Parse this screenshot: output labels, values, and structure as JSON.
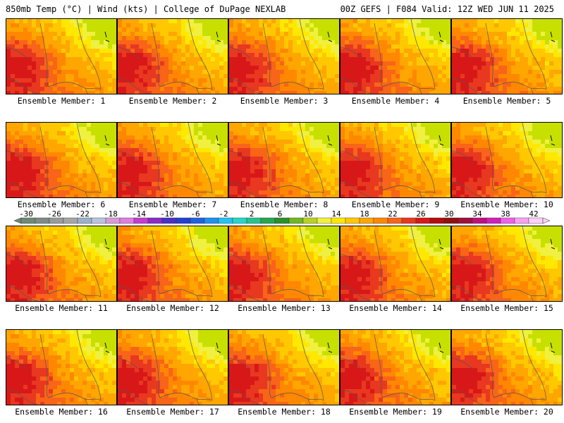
{
  "header": {
    "title_left": "850mb Temp (°C) | Wind (kts) | College of DuPage NEXLAB",
    "title_right": "00Z GEFS | F084 Valid: 12Z WED JUN 11 2025"
  },
  "members": [
    {
      "label": "Ensemble Member: 1"
    },
    {
      "label": "Ensemble Member: 2"
    },
    {
      "label": "Ensemble Member: 3"
    },
    {
      "label": "Ensemble Member: 4"
    },
    {
      "label": "Ensemble Member: 5"
    },
    {
      "label": "Ensemble Member: 6"
    },
    {
      "label": "Ensemble Member: 7"
    },
    {
      "label": "Ensemble Member: 8"
    },
    {
      "label": "Ensemble Member: 9"
    },
    {
      "label": "Ensemble Member: 10"
    },
    {
      "label": "Ensemble Member: 11"
    },
    {
      "label": "Ensemble Member: 12"
    },
    {
      "label": "Ensemble Member: 13"
    },
    {
      "label": "Ensemble Member: 14"
    },
    {
      "label": "Ensemble Member: 15"
    },
    {
      "label": "Ensemble Member: 16"
    },
    {
      "label": "Ensemble Member: 17"
    },
    {
      "label": "Ensemble Member: 18"
    },
    {
      "label": "Ensemble Member: 19"
    },
    {
      "label": "Ensemble Member: 20"
    }
  ],
  "colorbar": {
    "tick_labels": [
      "-30",
      "-26",
      "-22",
      "-18",
      "-14",
      "-10",
      "-6",
      "-2",
      "2",
      "6",
      "10",
      "14",
      "18",
      "22",
      "26",
      "30",
      "34",
      "38",
      "42"
    ],
    "colors": [
      "#6f8a74",
      "#7e8c85",
      "#9a9a9a",
      "#a6a6a6",
      "#9ab2c8",
      "#b9c4dc",
      "#d79ad6",
      "#e07de0",
      "#c63cd0",
      "#8a2bc7",
      "#4a30c4",
      "#2340d0",
      "#1f62e0",
      "#1e90f0",
      "#20c4f0",
      "#25d6c8",
      "#25c48a",
      "#26a84e",
      "#2a8f2a",
      "#70b820",
      "#b9d21e",
      "#f0f040",
      "#ffe800",
      "#ffc800",
      "#ffa600",
      "#ff8800",
      "#f86418",
      "#e83820",
      "#d81818",
      "#b40c0c",
      "#901010",
      "#a0103c",
      "#c0107c",
      "#d020b8",
      "#f060e8",
      "#f8a0f0",
      "#fcd0f8"
    ]
  }
}
